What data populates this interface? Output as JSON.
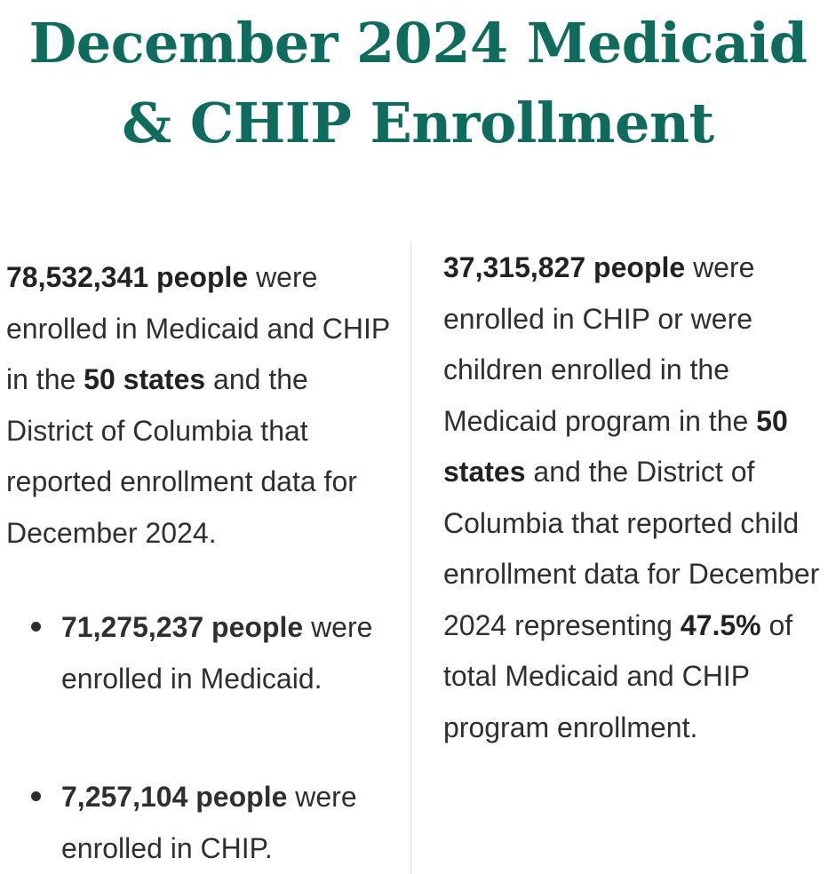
{
  "title": "December 2024 Medicaid & CHIP Enrollment",
  "left": {
    "intro": {
      "count": "78,532,341 people",
      "text_1": " were enrolled in Medicaid and CHIP in the ",
      "scope": "50 states",
      "text_2": " and the District of Columbia that reported enrollment data for December 2024."
    },
    "bullets": [
      {
        "count": "71,275,237 people",
        "text": " were enrolled in Medicaid."
      },
      {
        "count": "7,257,104 people",
        "text": " were enrolled in CHIP."
      }
    ]
  },
  "right": {
    "count": "37,315,827 people",
    "text_1": " were enrolled in CHIP or were children enrolled in the Medicaid program in the ",
    "scope": "50 states",
    "text_2": " and the District of Columbia that reported child enrollment data for December 2024 representing ",
    "percent": "47.5%",
    "text_3": " of total Medicaid and CHIP program enrollment."
  },
  "colors": {
    "title": "#0f6b5e",
    "text": "#2f2f2f",
    "divider": "#d6d6d6"
  }
}
